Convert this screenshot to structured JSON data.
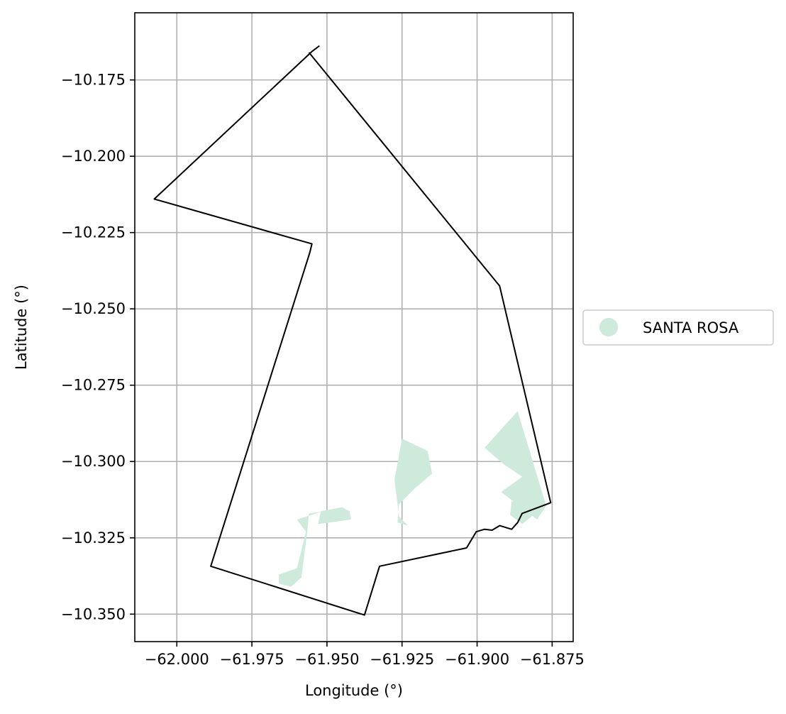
{
  "chart_data": {
    "type": "map",
    "xlabel": "Longitude (°)",
    "ylabel": "Latitude (°)",
    "xlim": [
      -62.014,
      -61.868
    ],
    "ylim": [
      -10.359,
      -10.153
    ],
    "grid": true,
    "xticks": [
      -62.0,
      -61.975,
      -61.95,
      -61.925,
      -61.9,
      -61.875
    ],
    "xtick_labels": [
      "−62.000",
      "−61.975",
      "−61.950",
      "−61.925",
      "−61.900",
      "−61.875"
    ],
    "yticks": [
      -10.175,
      -10.2,
      -10.225,
      -10.25,
      -10.275,
      -10.3,
      -10.325,
      -10.35
    ],
    "ytick_labels": [
      "−10.175",
      "−10.200",
      "−10.225",
      "−10.250",
      "−10.275",
      "−10.300",
      "−10.325",
      "−10.350"
    ],
    "legend": {
      "placement": "right",
      "entries": [
        {
          "label": "SANTA ROSA",
          "color": "#cdeadb"
        }
      ]
    },
    "boundary": [
      [
        -61.9525,
        -10.1638
      ],
      [
        -61.955,
        -10.1657
      ],
      [
        -62.0075,
        -10.214
      ],
      [
        -61.955,
        -10.2287
      ],
      [
        -61.9557,
        -10.2315
      ],
      [
        -61.9887,
        -10.3343
      ],
      [
        -61.9375,
        -10.3503
      ],
      [
        -61.9325,
        -10.3343
      ],
      [
        -61.9035,
        -10.3283
      ],
      [
        -61.9003,
        -10.323
      ],
      [
        -61.8975,
        -10.3222
      ],
      [
        -61.895,
        -10.3225
      ],
      [
        -61.8925,
        -10.321
      ],
      [
        -61.8885,
        -10.3222
      ],
      [
        -61.8865,
        -10.32
      ],
      [
        -61.885,
        -10.317
      ],
      [
        -61.8755,
        -10.3135
      ],
      [
        -61.8925,
        -10.2425
      ],
      [
        -61.956,
        -10.166
      ]
    ],
    "regions": [
      {
        "name": "SANTA ROSA",
        "color": "#cdeadb",
        "polygon": [
          [
            -61.9425,
            -10.3163
          ],
          [
            -61.945,
            -10.315
          ],
          [
            -61.952,
            -10.3163
          ],
          [
            -61.953,
            -10.3205
          ],
          [
            -61.942,
            -10.319
          ]
        ]
      },
      {
        "name": "SANTA ROSA",
        "color": "#cdeadb",
        "polygon": [
          [
            -61.923,
            -10.321
          ],
          [
            -61.926,
            -10.318
          ],
          [
            -61.9275,
            -10.306
          ],
          [
            -61.925,
            -10.2925
          ],
          [
            -61.9165,
            -10.2965
          ],
          [
            -61.915,
            -10.304
          ],
          [
            -61.921,
            -10.309
          ],
          [
            -61.926,
            -10.314
          ],
          [
            -61.9265,
            -10.32
          ]
        ]
      },
      {
        "name": "SANTA ROSA",
        "color": "#cdeadb",
        "polygon": [
          [
            -61.952,
            -10.3165
          ],
          [
            -61.956,
            -10.317
          ],
          [
            -61.9565,
            -10.3225
          ],
          [
            -61.9585,
            -10.338
          ],
          [
            -61.962,
            -10.341
          ],
          [
            -61.966,
            -10.34
          ],
          [
            -61.966,
            -10.337
          ],
          [
            -61.96,
            -10.335
          ],
          [
            -61.957,
            -10.323
          ],
          [
            -61.96,
            -10.319
          ]
        ]
      },
      {
        "name": "SANTA ROSA",
        "color": "#cdeadb",
        "polygon": [
          [
            -61.8865,
            -10.2835
          ],
          [
            -61.877,
            -10.3145
          ],
          [
            -61.88,
            -10.319
          ],
          [
            -61.892,
            -10.31
          ],
          [
            -61.885,
            -10.305
          ],
          [
            -61.891,
            -10.301
          ],
          [
            -61.8975,
            -10.2955
          ]
        ]
      },
      {
        "name": "SANTA ROSA",
        "color": "#cdeadb",
        "polygon": [
          [
            -61.8885,
            -10.313
          ],
          [
            -61.885,
            -10.3135
          ],
          [
            -61.88,
            -10.3165
          ],
          [
            -61.885,
            -10.3205
          ],
          [
            -61.889,
            -10.3175
          ]
        ]
      }
    ]
  }
}
